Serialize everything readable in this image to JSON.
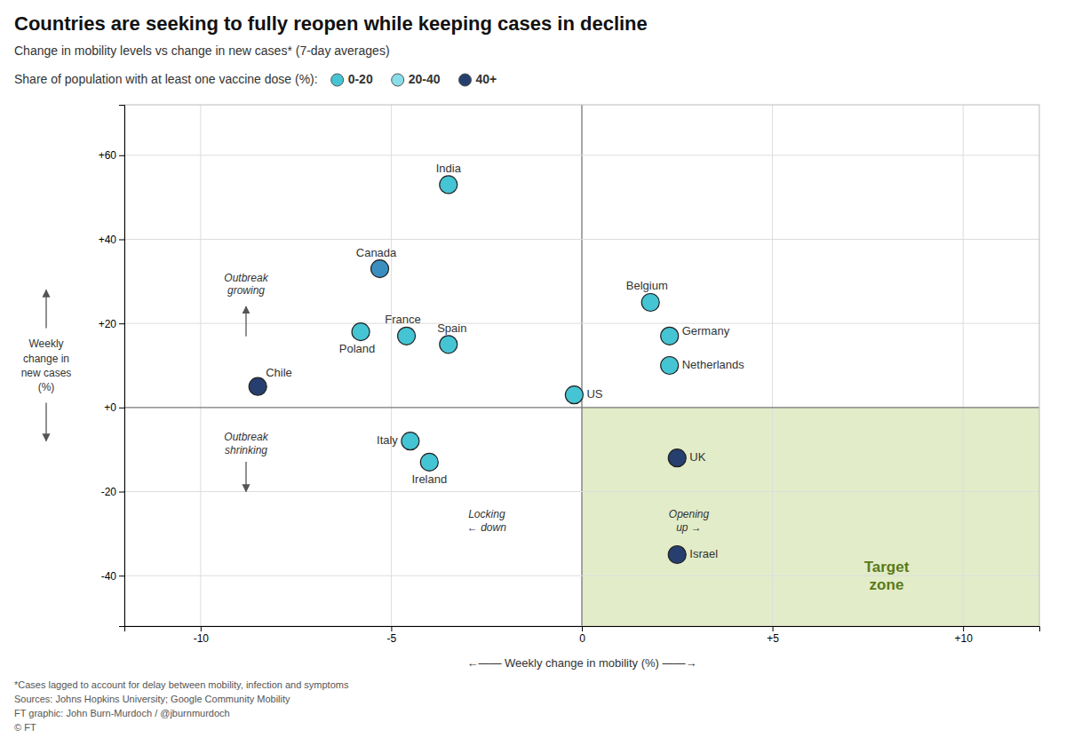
{
  "chart_data": {
    "type": "scatter",
    "title": "Countries are seeking to fully reopen while keeping cases in decline",
    "subtitle": "Change in mobility levels vs change in new cases* (7-day averages)",
    "legend_title": "Share of population with at least one vaccine dose (%):",
    "legend_items": [
      {
        "name": "0-20",
        "color": "#45c4d4"
      },
      {
        "name": "20-40",
        "color": "#88dde8"
      },
      {
        "name": "40+",
        "color": "#263f6e"
      }
    ],
    "x_label": "←—— Weekly change in mobility (%) ——→",
    "y_label": "Weekly\nchange in\nnew cases\n(%)",
    "labels": [
      "India",
      "Canada",
      "Chile",
      "Poland",
      "France",
      "Spain",
      "Belgium",
      "Germany",
      "Netherlands",
      "US",
      "Italy",
      "Ireland",
      "UK",
      "Israel"
    ],
    "x": [
      -3.5,
      -5.3,
      -8.5,
      -5.8,
      -4.6,
      -3.5,
      1.8,
      2.3,
      2.3,
      -0.2,
      -4.5,
      -4.0,
      2.5,
      2.5
    ],
    "values": [
      53,
      33,
      5,
      18,
      17,
      15,
      25,
      17,
      10,
      3,
      -8,
      -13,
      -12,
      -35
    ],
    "colors": [
      "#45c4d4",
      "#3a8fc0",
      "#263f6e",
      "#45c4d4",
      "#45c4d4",
      "#45c4d4",
      "#45c4d4",
      "#45c4d4",
      "#45c4d4",
      "#45c4d4",
      "#45c4d4",
      "#45c4d4",
      "#263f6e",
      "#263f6e"
    ],
    "marker": "circle",
    "xlim": [
      -12,
      12
    ],
    "ylim": [
      -52,
      72
    ],
    "xticks": [
      -10,
      -5,
      0,
      {
        "value": 5,
        "label": "+5"
      },
      {
        "value": 10,
        "label": "+10"
      }
    ],
    "yticks": [
      -40,
      -20,
      {
        "value": 0,
        "label": "+0"
      },
      {
        "value": 20,
        "label": "+20"
      },
      {
        "value": 40,
        "label": "+40"
      },
      {
        "value": 60,
        "label": "+60"
      }
    ],
    "grid": true,
    "annotations": [
      "Outbreak\ngrowing",
      "Outbreak\nshrinking",
      "Locking\n← down",
      "Opening\nup →",
      "Target\nzone"
    ],
    "footnotes": [
      "*Cases lagged to account for delay between mobility, infection and symptoms",
      "Sources: Johns Hopkins University; Google Community Mobility",
      "FT graphic: John Burn-Murdoch / @jburnmurdoch",
      "© FT"
    ]
  }
}
